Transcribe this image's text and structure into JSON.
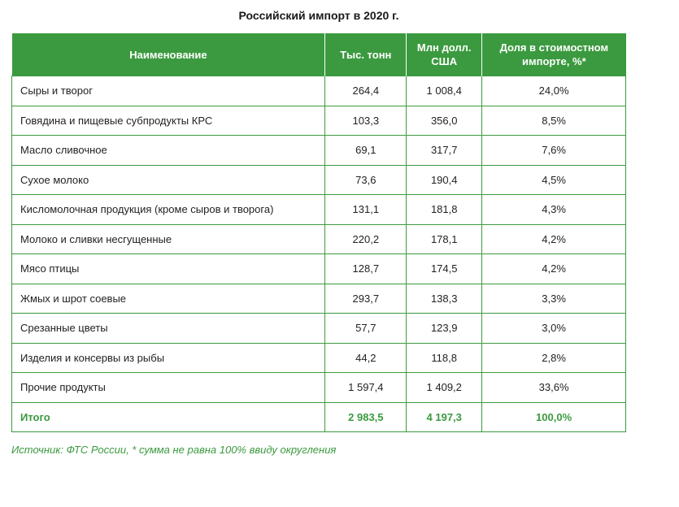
{
  "title": "Российский импорт в 2020 г.",
  "table": {
    "headers": {
      "name": "Наименование",
      "tons": "Тыс. тонн",
      "usd": "Млн долл. США",
      "share": "Доля в стоимостном импорте, %*"
    },
    "rows": [
      {
        "name": "Сыры и творог",
        "tons": "264,4",
        "usd": "1 008,4",
        "share": "24,0%"
      },
      {
        "name": "Говядина и пищевые субпродукты КРС",
        "tons": "103,3",
        "usd": "356,0",
        "share": "8,5%"
      },
      {
        "name": "Масло сливочное",
        "tons": "69,1",
        "usd": "317,7",
        "share": "7,6%"
      },
      {
        "name": "Сухое молоко",
        "tons": "73,6",
        "usd": "190,4",
        "share": "4,5%"
      },
      {
        "name": "Кисломолочная продукция (кроме сыров и творога)",
        "tons": "131,1",
        "usd": "181,8",
        "share": "4,3%"
      },
      {
        "name": "Молоко и сливки несгущенные",
        "tons": "220,2",
        "usd": "178,1",
        "share": "4,2%"
      },
      {
        "name": "Мясо птицы",
        "tons": "128,7",
        "usd": "174,5",
        "share": "4,2%"
      },
      {
        "name": "Жмых и шрот соевые",
        "tons": "293,7",
        "usd": "138,3",
        "share": "3,3%"
      },
      {
        "name": "Срезанные цветы",
        "tons": "57,7",
        "usd": "123,9",
        "share": "3,0%"
      },
      {
        "name": "Изделия и консервы из рыбы",
        "tons": "44,2",
        "usd": "118,8",
        "share": "2,8%"
      },
      {
        "name": "Прочие продукты",
        "tons": "1 597,4",
        "usd": "1 409,2",
        "share": "33,6%"
      }
    ],
    "total": {
      "name": "Итого",
      "tons": "2 983,5",
      "usd": "4 197,3",
      "share": "100,0%"
    }
  },
  "source": "Источник: ФТС России, * сумма не равна 100% ввиду округления",
  "colors": {
    "accent": "#3b9a3f",
    "header_text": "#ffffff",
    "text": "#222222"
  }
}
